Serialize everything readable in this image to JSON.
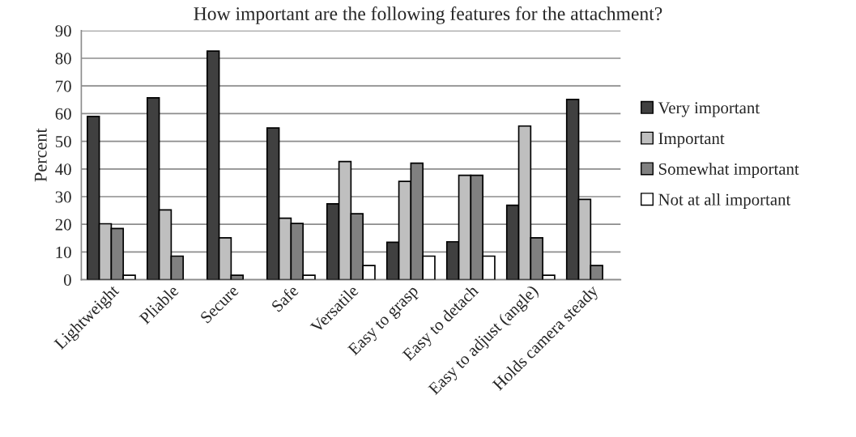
{
  "chart_data": {
    "type": "bar",
    "title": "How important are the following features for the attachment?",
    "ylabel": "Percent",
    "categories": [
      "Lightweight",
      "Pliable",
      "Secure",
      "Safe",
      "Versatile",
      "Easy to grasp",
      "Easy to detach",
      "Easy to adjust (angle)",
      "Holds camera steady"
    ],
    "series": [
      {
        "name": "Very important",
        "color": "#404040",
        "values": [
          59,
          65.7,
          82.6,
          54.8,
          27.4,
          13.5,
          13.7,
          26.9,
          65.1
        ]
      },
      {
        "name": "Important",
        "color": "#bfbfbf",
        "values": [
          20.2,
          25.2,
          15.1,
          22.2,
          42.7,
          35.5,
          37.7,
          55.5,
          29
        ]
      },
      {
        "name": "Somewhat important",
        "color": "#808080",
        "values": [
          18.5,
          8.5,
          1.6,
          20.3,
          23.8,
          42.1,
          37.7,
          15.1,
          5.1
        ]
      },
      {
        "name": "Not at all important",
        "color": "#ffffff",
        "values": [
          1.6,
          null,
          null,
          1.6,
          5.1,
          8.5,
          8.5,
          1.6,
          null
        ]
      }
    ],
    "ylim": [
      0,
      90
    ],
    "yticks": [
      0,
      10,
      20,
      30,
      40,
      50,
      60,
      70,
      80,
      90
    ],
    "grid": "y",
    "legend": "right"
  }
}
